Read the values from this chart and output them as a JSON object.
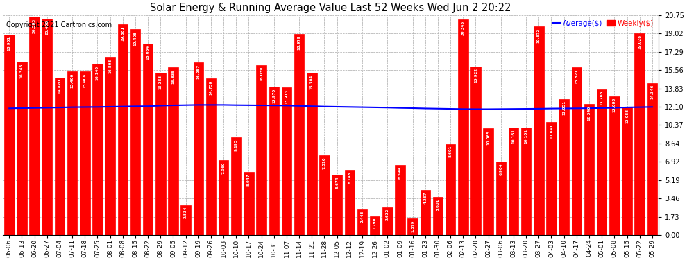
{
  "title": "Solar Energy & Running Average Value Last 52 Weeks Wed Jun 2 20:22",
  "copyright": "Copyright 2021 Cartronics.com",
  "bar_color": "#ff0000",
  "avg_line_color": "#0000ff",
  "background_color": "#ffffff",
  "grid_color": "#aaaaaa",
  "yticks": [
    0.0,
    1.73,
    3.46,
    5.19,
    6.92,
    8.64,
    10.37,
    12.1,
    13.83,
    15.56,
    17.29,
    19.02,
    20.75
  ],
  "legend_avg_label": "Average($)",
  "legend_weekly_label": "Weekly($)",
  "xlabels": [
    "06-06",
    "06-13",
    "06-20",
    "06-27",
    "07-04",
    "07-11",
    "07-18",
    "07-25",
    "08-01",
    "08-08",
    "08-15",
    "08-22",
    "08-29",
    "09-05",
    "09-12",
    "09-19",
    "09-26",
    "10-03",
    "10-10",
    "10-17",
    "10-24",
    "10-31",
    "11-07",
    "11-14",
    "11-21",
    "11-28",
    "12-05",
    "12-12",
    "12-19",
    "12-26",
    "01-02",
    "01-09",
    "01-16",
    "01-23",
    "01-30",
    "02-06",
    "02-13",
    "02-20",
    "02-27",
    "03-06",
    "03-13",
    "03-20",
    "03-27",
    "04-03",
    "04-10",
    "04-17",
    "04-24",
    "05-01",
    "05-08",
    "05-15",
    "05-22",
    "05-29"
  ],
  "bar_values": [
    18.901,
    16.345,
    20.583,
    20.406,
    14.87,
    15.406,
    15.408,
    16.14,
    16.808,
    19.881,
    19.408,
    18.064,
    15.283,
    15.835,
    2.834,
    16.257,
    14.758,
    7.06,
    9.195,
    5.947,
    16.039,
    13.97,
    13.913,
    18.979,
    15.304,
    7.516,
    5.674,
    6.143,
    2.443,
    1.79,
    2.622,
    6.594,
    1.579,
    4.257,
    3.601,
    8.601,
    20.345,
    15.922,
    10.065,
    6.904,
    10.161,
    10.161,
    19.672,
    10.641,
    12.851,
    15.821,
    12.346,
    13.766,
    13.088,
    12.088,
    19.028,
    14.346
  ],
  "avg_values": [
    11.95,
    11.97,
    11.99,
    12.01,
    12.03,
    12.06,
    12.07,
    12.08,
    12.1,
    12.12,
    12.14,
    12.15,
    12.2,
    12.23,
    12.25,
    12.27,
    12.27,
    12.27,
    12.25,
    12.24,
    12.23,
    12.22,
    12.21,
    12.18,
    12.15,
    12.12,
    12.1,
    12.08,
    12.06,
    12.04,
    12.02,
    11.99,
    11.97,
    11.94,
    11.92,
    11.9,
    11.88,
    11.87,
    11.87,
    11.88,
    11.89,
    11.9,
    11.91,
    11.93,
    11.94,
    11.95,
    11.96,
    11.98,
    12.0,
    12.04,
    12.06,
    12.08
  ]
}
